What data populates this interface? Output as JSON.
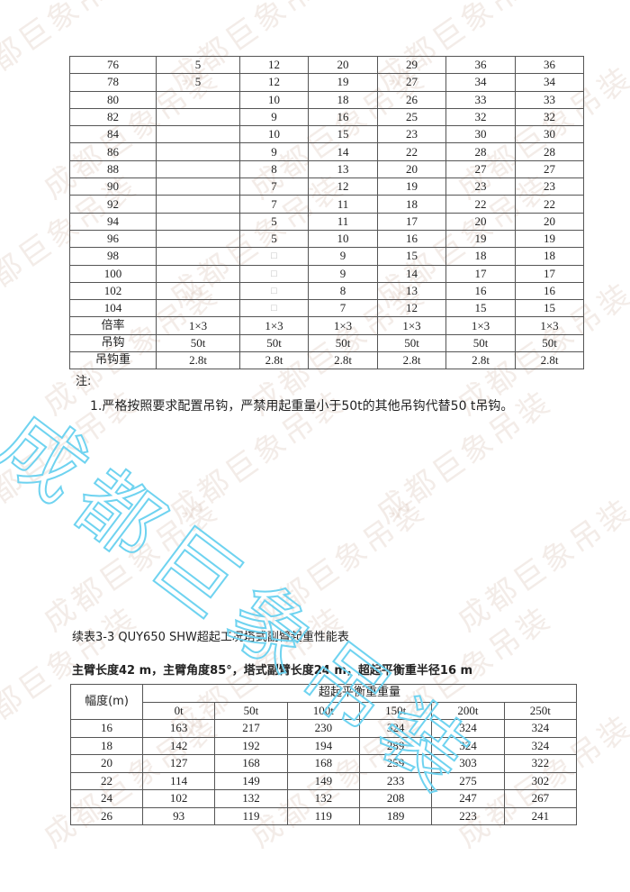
{
  "watermark": {
    "text": "成都巨象吊装",
    "color": "#6fd3f0"
  },
  "table1": {
    "rows": [
      [
        "76",
        "5",
        "12",
        "20",
        "29",
        "36",
        "36"
      ],
      [
        "78",
        "5",
        "12",
        "19",
        "27",
        "34",
        "34"
      ],
      [
        "80",
        "",
        "10",
        "18",
        "26",
        "33",
        "33"
      ],
      [
        "82",
        "",
        "9",
        "16",
        "25",
        "32",
        "32"
      ],
      [
        "84",
        "",
        "10",
        "15",
        "23",
        "30",
        "30"
      ],
      [
        "86",
        "",
        "9",
        "14",
        "22",
        "28",
        "28"
      ],
      [
        "88",
        "",
        "8",
        "13",
        "20",
        "27",
        "27"
      ],
      [
        "90",
        "",
        "7",
        "12",
        "19",
        "23",
        "23"
      ],
      [
        "92",
        "",
        "7",
        "11",
        "18",
        "22",
        "22"
      ],
      [
        "94",
        "",
        "5",
        "11",
        "17",
        "20",
        "20"
      ],
      [
        "96",
        "",
        "5",
        "10",
        "16",
        "19",
        "19"
      ],
      [
        "98",
        "",
        "□",
        "9",
        "15",
        "18",
        "18"
      ],
      [
        "100",
        "",
        "□",
        "9",
        "14",
        "17",
        "17"
      ],
      [
        "102",
        "",
        "□",
        "8",
        "13",
        "16",
        "16"
      ],
      [
        "104",
        "",
        "□",
        "7",
        "12",
        "15",
        "15"
      ]
    ],
    "footer_rows": [
      [
        "倍率",
        "1×3",
        "1×3",
        "1×3",
        "1×3",
        "1×3",
        "1×3"
      ],
      [
        "吊钩",
        "50t",
        "50t",
        "50t",
        "50t",
        "50t",
        "50t"
      ],
      [
        "吊钩重",
        "2.8t",
        "2.8t",
        "2.8t",
        "2.8t",
        "2.8t",
        "2.8t"
      ]
    ]
  },
  "notes": {
    "label": "注:",
    "item1": "1.严格按照要求配置吊钩，严禁用起重量小于50t的其他吊钩代替50 t吊钩。"
  },
  "section": {
    "title": "续表3-3 QUY650 SHW超起工况塔式副臂起重性能表",
    "subtitle": "主臂长度42 m，主臂角度85°，塔式副臂长度24 m，超起平衡重半径16 m"
  },
  "table2": {
    "col0_header": "幅度(m)",
    "group_header": "超起平衡重重量",
    "columns": [
      "0t",
      "50t",
      "100t",
      "150t",
      "200t",
      "250t"
    ],
    "rows": [
      [
        "16",
        "163",
        "217",
        "230",
        "324",
        "324",
        "324"
      ],
      [
        "18",
        "142",
        "192",
        "194",
        "289",
        "324",
        "324"
      ],
      [
        "20",
        "127",
        "168",
        "168",
        "259",
        "303",
        "322"
      ],
      [
        "22",
        "114",
        "149",
        "149",
        "233",
        "275",
        "302"
      ],
      [
        "24",
        "102",
        "132",
        "132",
        "208",
        "247",
        "267"
      ],
      [
        "26",
        "93",
        "119",
        "119",
        "189",
        "223",
        "241"
      ]
    ]
  }
}
